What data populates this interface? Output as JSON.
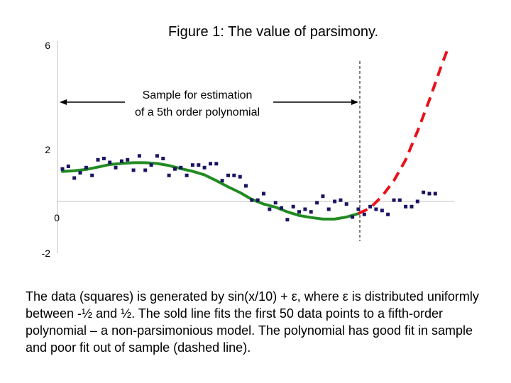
{
  "title": "Figure 1: The value of parsimony.",
  "caption": "The data (squares) is generated by sin(x/10) + ε, where ε is distributed uniformly between -½ and ½. The sold line fits the first 50 data points to a fifth-order polynomial – a non-parsimonious model. The polynomial has good fit in sample and poor fit out of sample (dashed line).",
  "annotation": {
    "line1": "Sample for estimation",
    "line2": "of a 5th order polynomial"
  },
  "colors": {
    "data_points": "#1b1464",
    "fit_line": "#228b22",
    "forecast_line": "#e8111b",
    "axis": "#c0c0c0"
  },
  "chart_data": {
    "type": "scatter",
    "title": "Figure 1: The value of parsimony.",
    "xlabel": "",
    "ylabel": "",
    "yticks": [
      "6",
      "2",
      "0",
      "-2"
    ],
    "ylim": [
      -2,
      6
    ],
    "xlim": [
      0,
      65
    ],
    "grid": false,
    "sample_boundary_x": 50,
    "series": [
      {
        "kind": "points",
        "marker": "square",
        "x": [
          0,
          1,
          2,
          3,
          4,
          5,
          6,
          7,
          8,
          9,
          10,
          11,
          12,
          13,
          14,
          15,
          16,
          17,
          18,
          19,
          20,
          21,
          22,
          23,
          24,
          25,
          26,
          27,
          28,
          29,
          30,
          31,
          32,
          33,
          34,
          35,
          36,
          37,
          38,
          39,
          40,
          41,
          42,
          43,
          44,
          45,
          46,
          47,
          48,
          49,
          50,
          51,
          52,
          53,
          54,
          55,
          56,
          57,
          58,
          59,
          60,
          61,
          62,
          63
        ],
        "y": [
          1.25,
          1.35,
          0.9,
          1.1,
          1.3,
          1.0,
          1.6,
          1.65,
          1.5,
          1.3,
          1.55,
          1.6,
          1.2,
          1.75,
          1.2,
          1.4,
          1.75,
          1.65,
          1.0,
          1.25,
          1.3,
          1.0,
          1.4,
          1.4,
          1.3,
          1.45,
          1.45,
          0.8,
          1.0,
          1.0,
          0.95,
          0.6,
          0.05,
          0.05,
          0.3,
          -0.3,
          -0.05,
          -0.25,
          -0.7,
          -0.2,
          -0.4,
          -0.3,
          -0.4,
          -0.05,
          0.2,
          -0.3,
          0.0,
          0.05,
          -0.1,
          -0.6,
          -0.3,
          -0.5,
          -0.2,
          -0.3,
          -0.35,
          -0.5,
          0.05,
          0.05,
          -0.2,
          -0.2,
          0.0,
          0.35,
          0.3,
          0.3
        ]
      },
      {
        "kind": "line",
        "style": "solid",
        "x": [
          0,
          2,
          4,
          6,
          8,
          10,
          12,
          14,
          16,
          18,
          20,
          22,
          24,
          26,
          28,
          30,
          32,
          34,
          36,
          38,
          40,
          42,
          44,
          46,
          48,
          50
        ],
        "y": [
          1.15,
          1.18,
          1.23,
          1.32,
          1.42,
          1.46,
          1.49,
          1.49,
          1.46,
          1.38,
          1.26,
          1.16,
          1.02,
          0.8,
          0.56,
          0.34,
          0.08,
          -0.1,
          -0.22,
          -0.4,
          -0.54,
          -0.62,
          -0.68,
          -0.68,
          -0.6,
          -0.47
        ]
      },
      {
        "kind": "line",
        "style": "dashed",
        "x": [
          50,
          52,
          54,
          56,
          58,
          60,
          62,
          64,
          65
        ],
        "y": [
          -0.47,
          -0.25,
          0.2,
          0.8,
          1.6,
          2.7,
          3.9,
          5.2,
          5.8
        ]
      }
    ]
  }
}
